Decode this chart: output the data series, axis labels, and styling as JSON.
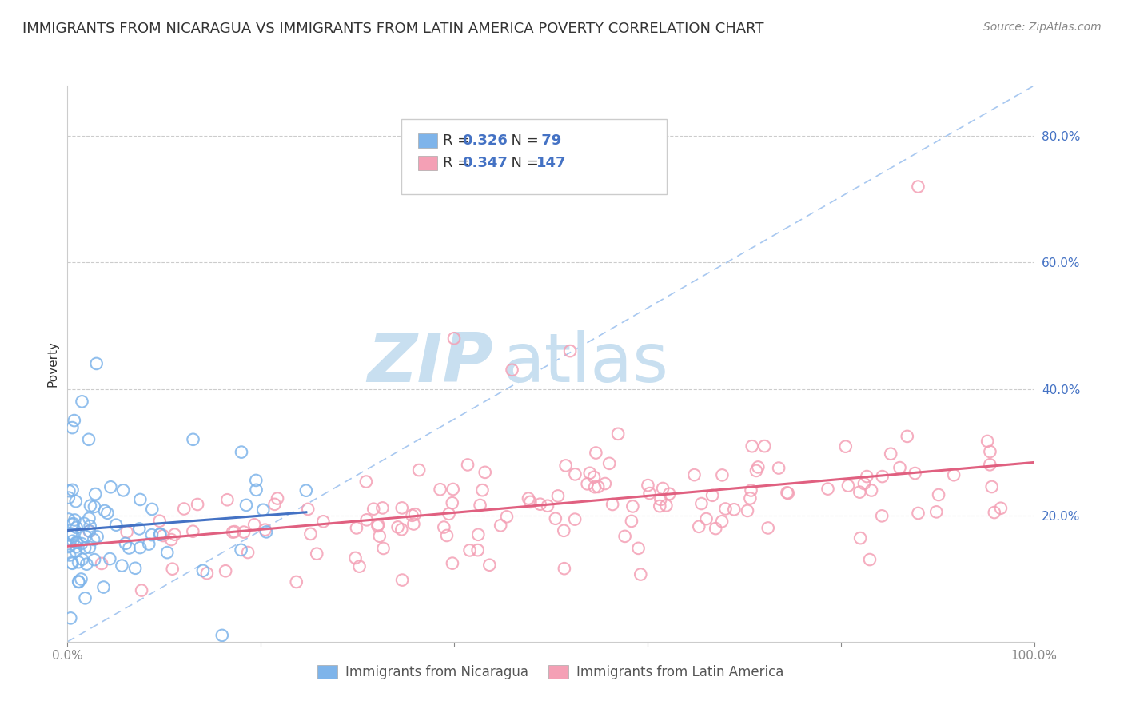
{
  "title": "IMMIGRANTS FROM NICARAGUA VS IMMIGRANTS FROM LATIN AMERICA POVERTY CORRELATION CHART",
  "source": "Source: ZipAtlas.com",
  "ylabel": "Poverty",
  "yticks_right": [
    0.0,
    0.2,
    0.4,
    0.6,
    0.8
  ],
  "ytick_labels_right": [
    "",
    "20.0%",
    "40.0%",
    "60.0%",
    "80.0%"
  ],
  "xlim": [
    0.0,
    1.0
  ],
  "ylim": [
    0.0,
    0.88
  ],
  "series1_label": "Immigrants from Nicaragua",
  "series2_label": "Immigrants from Latin America",
  "series1_color": "#7EB4EA",
  "series2_color": "#F4A0B5",
  "series1_line_color": "#4472C4",
  "series2_line_color": "#E06080",
  "ref_line_color": "#A8C8F0",
  "series1_R": 0.326,
  "series1_N": 79,
  "series2_R": 0.347,
  "series2_N": 147,
  "legend_R_color": "#4472C4",
  "title_fontsize": 13,
  "source_fontsize": 10,
  "watermark_zip": "ZIP",
  "watermark_atlas": "atlas",
  "watermark_color": "#C8DFF0",
  "background_color": "#FFFFFF",
  "grid_color": "#CCCCCC",
  "seed1": 42,
  "seed2": 123
}
